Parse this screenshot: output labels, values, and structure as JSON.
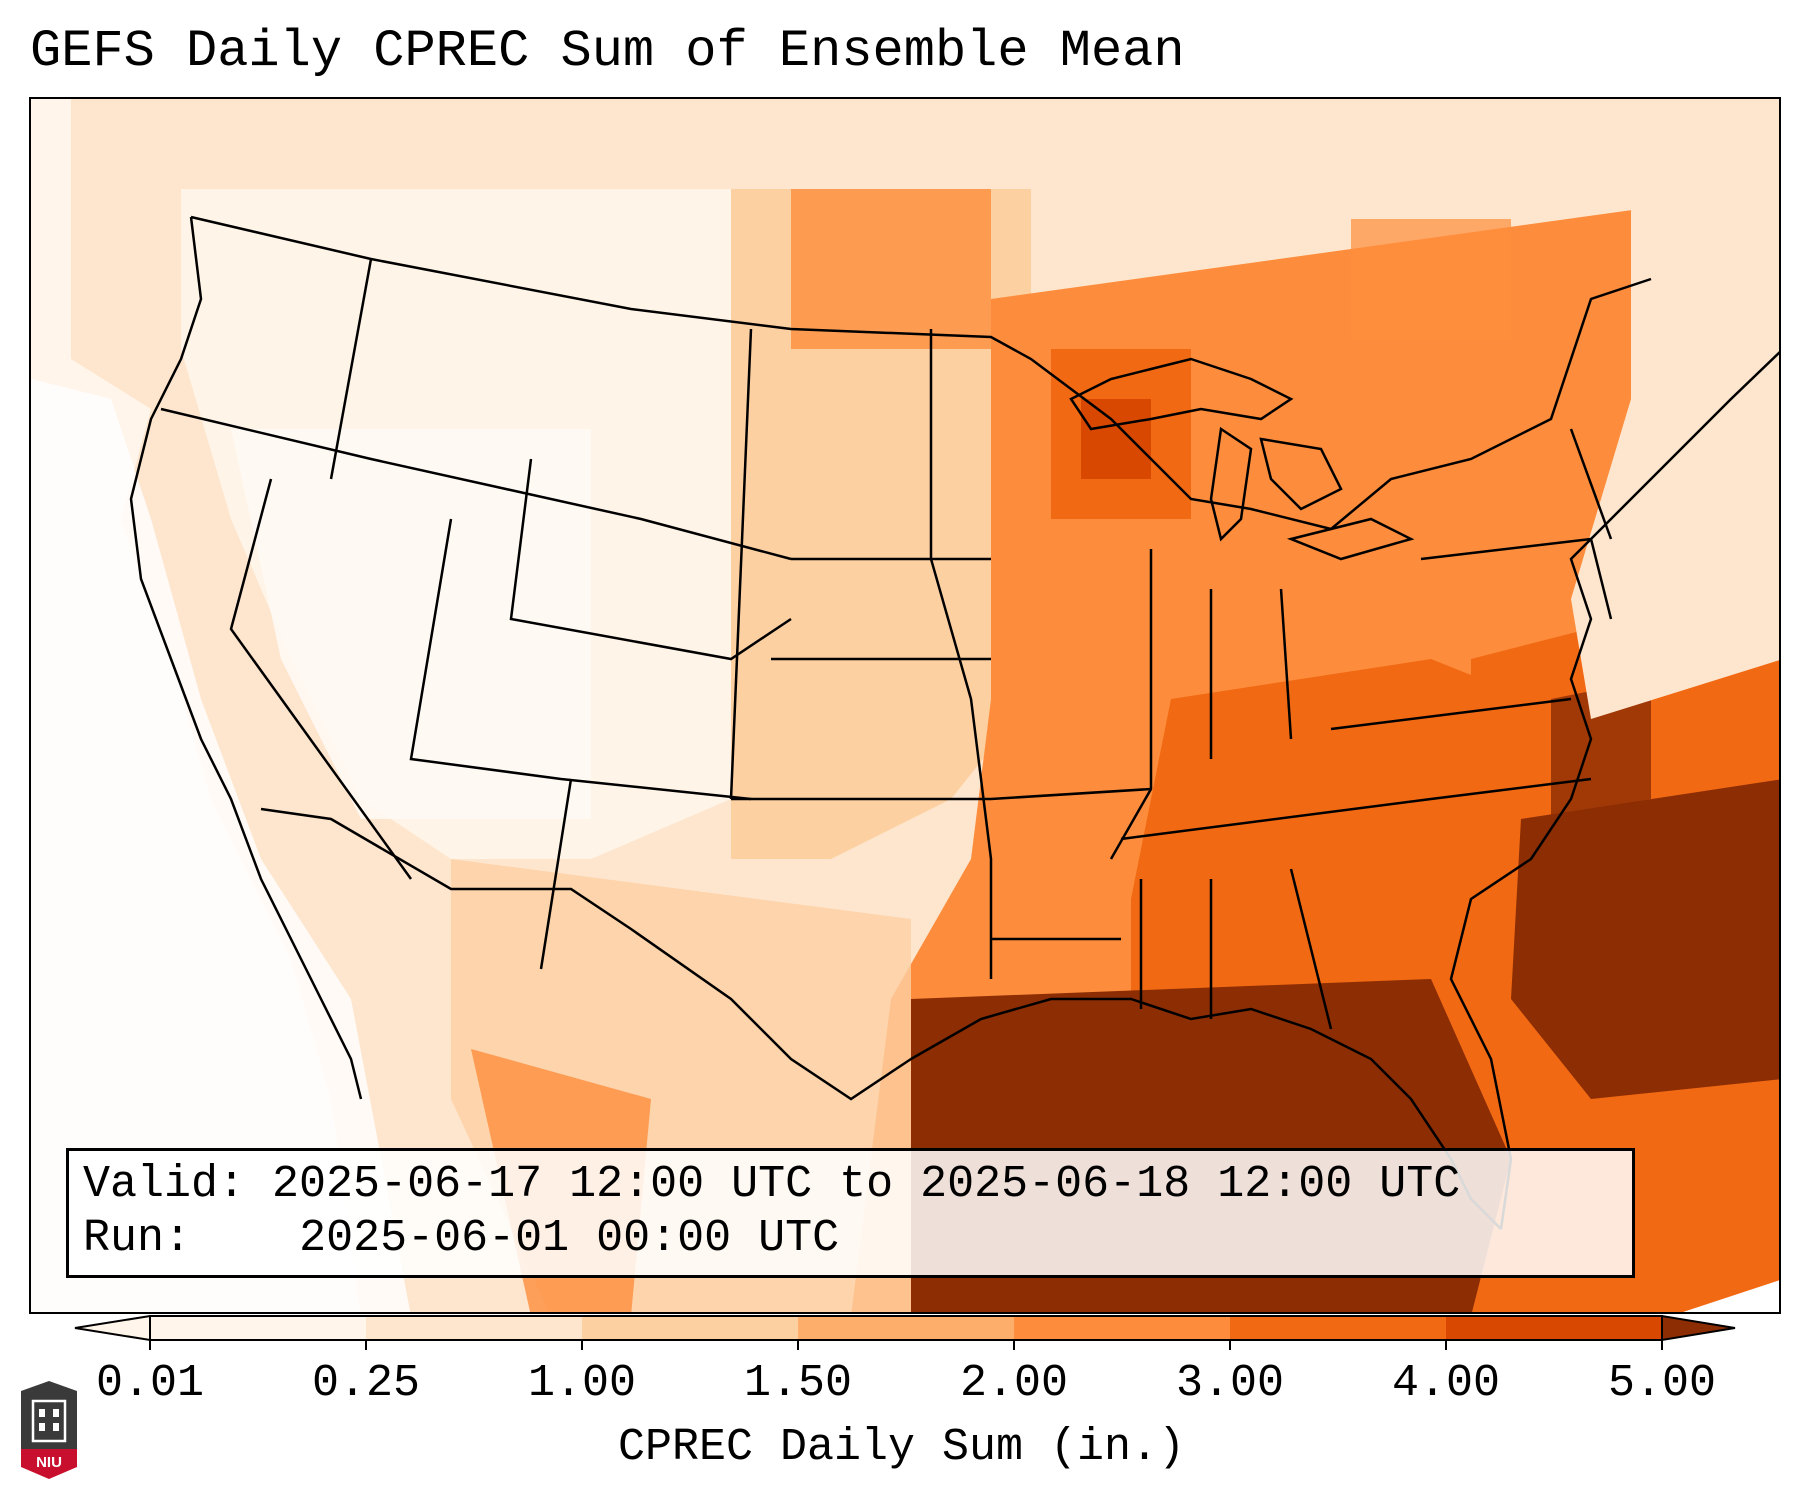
{
  "title": "GEFS Daily CPREC Sum of Ensemble Mean",
  "info": {
    "valid_label": "Valid:",
    "valid_value": "2025-06-17 12:00 UTC to 2025-06-18 12:00 UTC",
    "run_label": "Run:",
    "run_value": "2025-06-01 00:00 UTC"
  },
  "colorbar": {
    "label": "CPREC Daily Sum (in.)",
    "ticks": [
      "0.01",
      "0.25",
      "1.00",
      "1.50",
      "2.00",
      "3.00",
      "4.00",
      "5.00"
    ],
    "colors": [
      "#fff5eb",
      "#fee6ce",
      "#fdd0a2",
      "#fdae6b",
      "#fd8d3c",
      "#f16913",
      "#d94801",
      "#8c2d04"
    ],
    "extend": "both"
  },
  "logo": {
    "text": "NIU",
    "colors": {
      "shield": "#3a3a3a",
      "band": "#c8102e"
    }
  },
  "map": {
    "region": "Continental United States",
    "palette": "Oranges",
    "features": [
      "state borders",
      "country borders",
      "coastlines",
      "Great Lakes"
    ]
  }
}
